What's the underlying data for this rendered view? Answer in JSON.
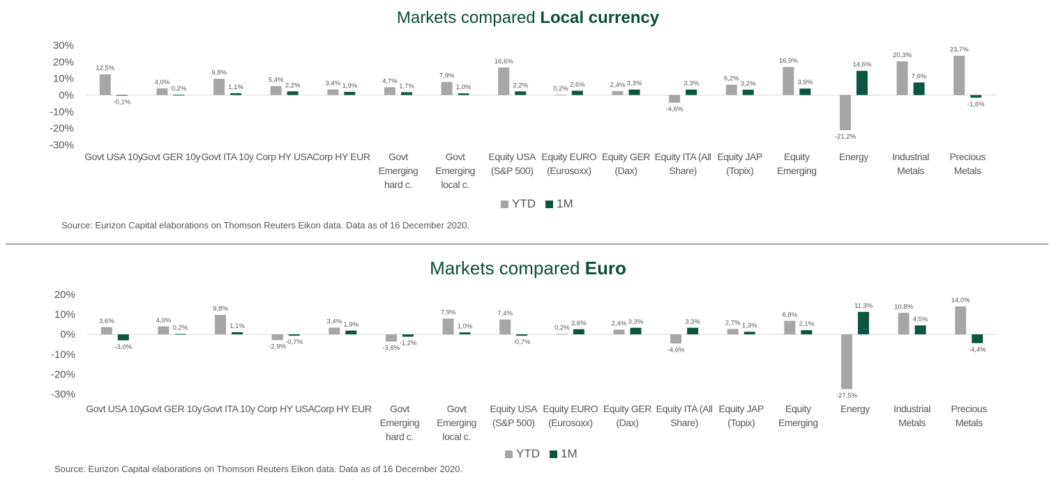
{
  "colors": {
    "ytd": "#a6a6a6",
    "one_month": "#0b5640",
    "title": "#0b4d3a",
    "axis": "#d9d9d9"
  },
  "charts": [
    {
      "title_main": "Markets compared",
      "title_bold": "Local currency",
      "source": "Source: Eurizon Capital elaborations on Thomson Reuters Eikon data. Data as of 16 December 2020.",
      "legend": [
        "YTD",
        "1M"
      ]
    },
    {
      "title_main": "Markets compared",
      "title_bold": "Euro",
      "source": "Source: Eurizon Capital elaborations on Thomson Reuters Eikon data. Data as of 16 December 2020.",
      "legend": [
        "YTD",
        "1M"
      ]
    }
  ],
  "chart_data": [
    {
      "type": "bar",
      "title": "Markets compared Local currency",
      "categories": [
        [
          "Govt USA 10y"
        ],
        [
          "Govt GER 10y"
        ],
        [
          "Govt ITA 10y"
        ],
        [
          "Corp HY USA"
        ],
        [
          "Corp HY EUR"
        ],
        [
          "Govt",
          "Emerging",
          "hard c."
        ],
        [
          "Govt",
          "Emerging",
          "local c."
        ],
        [
          "Equity USA",
          "(S&P 500)"
        ],
        [
          "Equity EURO",
          "(Eurosoxx)"
        ],
        [
          "Equity GER",
          "(Dax)"
        ],
        [
          "Equity ITA (All",
          "Share)"
        ],
        [
          "Equity JAP",
          "(Topix)"
        ],
        [
          "Equity",
          "Emerging"
        ],
        [
          "Energy"
        ],
        [
          "Industrial",
          "Metals"
        ],
        [
          "Precious",
          "Metals"
        ]
      ],
      "series": [
        {
          "name": "YTD",
          "values": [
            12.5,
            4.0,
            9.8,
            5.4,
            3.4,
            4.7,
            7.9,
            16.6,
            0.2,
            2.4,
            -4.6,
            6.2,
            16.9,
            -21.2,
            20.3,
            23.7
          ],
          "labels": [
            "12,5%",
            "4,0%",
            "9,8%",
            "5,4%",
            "3,4%",
            "4,7%",
            "7,9%",
            "16,6%",
            "0,2%",
            "2,4%",
            "-4,6%",
            "6,2%",
            "16,9%",
            "-21,2%",
            "20,3%",
            "23,7%"
          ]
        },
        {
          "name": "1M",
          "values": [
            -0.1,
            0.2,
            1.1,
            2.2,
            1.9,
            1.7,
            1.0,
            2.2,
            2.6,
            3.3,
            3.3,
            3.2,
            3.9,
            14.6,
            7.6,
            -1.6
          ],
          "labels": [
            "-0,1%",
            "0,2%",
            "1,1%",
            "2,2%",
            "1,9%",
            "1,7%",
            "1,0%",
            "2,2%",
            "2,6%",
            "3,3%",
            "3,3%",
            "3,2%",
            "3,9%",
            "14,6%",
            "7,6%",
            "-1,6%"
          ]
        }
      ],
      "ylim": [
        -30,
        30
      ],
      "yticks": [
        30,
        20,
        10,
        0,
        -10,
        -20,
        -30
      ],
      "ytick_labels": [
        "30%",
        "20%",
        "10%",
        "0%",
        "-10%",
        "-20%",
        "-30%"
      ],
      "legend_position": "bottom-center",
      "grid": false
    },
    {
      "type": "bar",
      "title": "Markets compared Euro",
      "categories": [
        [
          "Govt USA 10y"
        ],
        [
          "Govt GER 10y"
        ],
        [
          "Govt ITA 10y"
        ],
        [
          "Corp HY USA"
        ],
        [
          "Corp HY EUR"
        ],
        [
          "Govt",
          "Emerging",
          "hard c."
        ],
        [
          "Govt",
          "Emerging",
          "local c."
        ],
        [
          "Equity USA",
          "(S&P 500)"
        ],
        [
          "Equity EURO",
          "(Eurosoxx)"
        ],
        [
          "Equity GER",
          "(Dax)"
        ],
        [
          "Equity ITA (All",
          "Share)"
        ],
        [
          "Equity JAP",
          "(Topix)"
        ],
        [
          "Equity",
          "Emerging"
        ],
        [
          "Energy"
        ],
        [
          "Industrial",
          "Metals"
        ],
        [
          "Precious",
          "Metals"
        ]
      ],
      "series": [
        {
          "name": "YTD",
          "values": [
            3.6,
            4.0,
            9.8,
            -2.9,
            3.4,
            -3.6,
            7.9,
            7.4,
            0.2,
            2.4,
            -4.6,
            2.7,
            6.8,
            -27.5,
            10.8,
            14.0
          ],
          "labels": [
            "3,6%",
            "4,0%",
            "9,8%",
            "-2,9%",
            "3,4%",
            "-3,6%",
            "7,9%",
            "7,4%",
            "0,2%",
            "2,4%",
            "-4,6%",
            "2,7%",
            "6,8%",
            "-27,5%",
            "10,8%",
            "14,0%"
          ]
        },
        {
          "name": "1M",
          "values": [
            -3.0,
            0.2,
            1.1,
            -0.7,
            1.9,
            -1.2,
            1.0,
            -0.7,
            2.6,
            3.3,
            3.3,
            1.3,
            2.1,
            11.3,
            4.5,
            -4.4
          ],
          "labels": [
            "-3,0%",
            "0,2%",
            "1,1%",
            "-0,7%",
            "1,9%",
            "-1,2%",
            "1,0%",
            "-0,7%",
            "2,6%",
            "3,3%",
            "3,3%",
            "1,3%",
            "2,1%",
            "11,3%",
            "4,5%",
            "-4,4%"
          ]
        }
      ],
      "ylim": [
        -30,
        20
      ],
      "yticks": [
        20,
        10,
        0,
        -10,
        -20,
        -30
      ],
      "ytick_labels": [
        "20%",
        "10%",
        "0%",
        "-10%",
        "-20%",
        "-30%"
      ],
      "legend_position": "bottom-center",
      "grid": false
    }
  ]
}
